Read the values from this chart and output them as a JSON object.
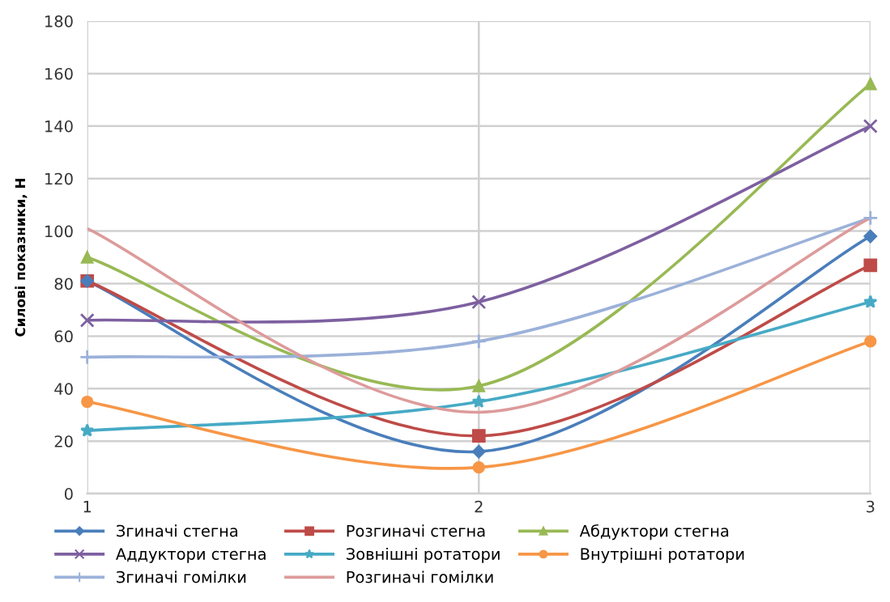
{
  "chart_data": {
    "type": "line",
    "ylabel": "Силові показники, Н",
    "x": [
      1,
      2,
      3
    ],
    "xlim": [
      1,
      3
    ],
    "xticks": [
      1,
      2,
      3
    ],
    "ylim": [
      0,
      180
    ],
    "yticks": [
      0,
      20,
      40,
      60,
      80,
      100,
      120,
      140,
      160,
      180
    ],
    "grid": true,
    "legend": "bottom",
    "line_style": "solid",
    "series": [
      {
        "name": "Згиначі стегна",
        "color": "#4a7ebb",
        "marker": "diamond",
        "values": [
          81,
          16,
          98
        ]
      },
      {
        "name": "Розгиначі стегна",
        "color": "#be4b48",
        "marker": "square",
        "values": [
          81,
          22,
          87
        ]
      },
      {
        "name": "Абдуктори стегна",
        "color": "#98b954",
        "marker": "triangle",
        "values": [
          90,
          41,
          156
        ]
      },
      {
        "name": "Аддуктори стегна",
        "color": "#7d60a0",
        "marker": "cross",
        "values": [
          66,
          73,
          140
        ]
      },
      {
        "name": "Зовнішні ротатори",
        "color": "#46aac5",
        "marker": "star",
        "values": [
          24,
          35,
          73
        ]
      },
      {
        "name": "Внутрішні ротатори",
        "color": "#f79646",
        "marker": "circle",
        "values": [
          35,
          10,
          58
        ]
      },
      {
        "name": "Згиначі гомілки",
        "color": "#9bb1d9",
        "marker": "plus",
        "values": [
          52,
          58,
          105
        ]
      },
      {
        "name": "Розгиначі гомілки",
        "color": "#dd9b9b",
        "marker": "none",
        "values": [
          101,
          31,
          105
        ]
      }
    ]
  }
}
